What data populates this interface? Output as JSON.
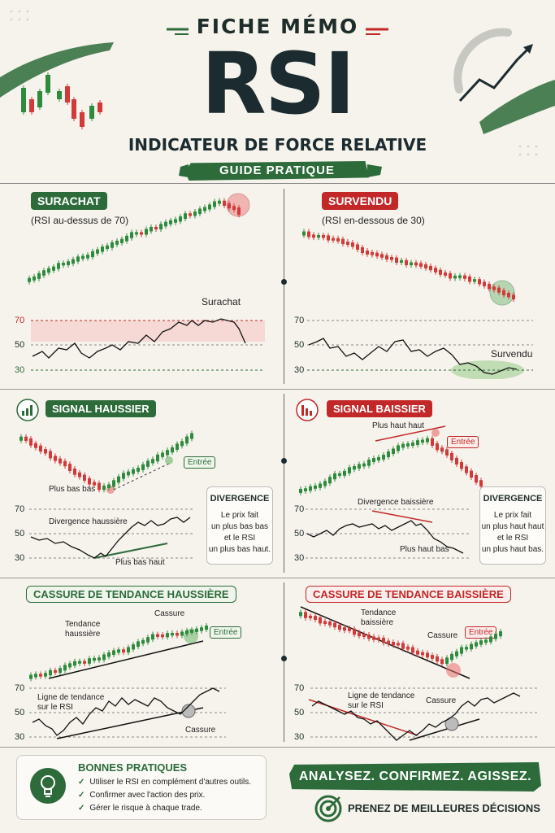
{
  "header": {
    "fiche": "FICHE MÉMO",
    "rsi": "RSI",
    "subtitle": "INDICATEUR DE FORCE RELATIVE",
    "guide": "GUIDE PRATIQUE"
  },
  "levels": {
    "l70": "70",
    "l50": "50",
    "l30": "30"
  },
  "panels": {
    "surachat": {
      "badge": "SURACHAT",
      "note": "(RSI au-dessus de 70)",
      "label": "Surachat"
    },
    "survendu": {
      "badge": "SURVENDU",
      "note": "(RSI en-dessous de 30)",
      "label": "Survendu"
    },
    "haussier": {
      "badge": "SIGNAL HAUSSIER",
      "entree": "Entrée",
      "plus_bas_bas": "Plus bas bas",
      "divergence_label": "Divergence haussière",
      "plus_bas_haut": "Plus bas haut",
      "box_title": "DIVERGENCE",
      "box_lines": [
        "Le prix fait",
        "un plus bas bas",
        "et le RSI",
        "un plus bas haut."
      ]
    },
    "baissier": {
      "badge": "SIGNAL BAISSIER",
      "plus_haut_haut": "Plus haut haut",
      "entree": "Entrée",
      "divergence_label": "Divergence baissière",
      "plus_haut_bas": "Plus haut bas",
      "box_title": "DIVERGENCE",
      "box_lines": [
        "Le prix fait",
        "un plus haut haut",
        "et le RSI",
        "un plus haut bas."
      ]
    },
    "cassure_h": {
      "badge": "CASSURE DE TENDANCE HAUSSIÈRE",
      "tendance": [
        "Tendance",
        "haussière"
      ],
      "cassure": "Cassure",
      "entree": "Entrée",
      "ligne": [
        "Ligne de tendance",
        "sur le RSI"
      ],
      "cassure_rsi": "Cassure"
    },
    "cassure_b": {
      "badge": "CASSURE DE TENDANCE BAISSIÈRE",
      "tendance": [
        "Tendance",
        "baissière"
      ],
      "cassure": "Cassure",
      "entree": "Entrée",
      "ligne": [
        "Ligne de tendance",
        "sur le RSI"
      ],
      "cassure_rsi": "Cassure"
    }
  },
  "bonnes_pratiques": {
    "title": "BONNES PRATIQUES",
    "items": [
      "Utiliser le RSI en complément d'autres outils.",
      "Confirmer avec l'action des prix.",
      "Gérer le risque à chaque trade."
    ]
  },
  "footer": {
    "slogan": "ANALYSEZ. CONFIRMEZ. AGISSEZ.",
    "prenez": "PRENEZ DE MEILLEURES DÉCISIONS"
  },
  "colors": {
    "green": "#2d6b3b",
    "red": "#c22828",
    "dark": "#1b2b2f"
  },
  "icons": [
    "candlestick-icon",
    "trend-arrow-icon",
    "bar-chart-up-icon",
    "bar-chart-down-icon",
    "lightbulb-icon",
    "target-icon"
  ]
}
